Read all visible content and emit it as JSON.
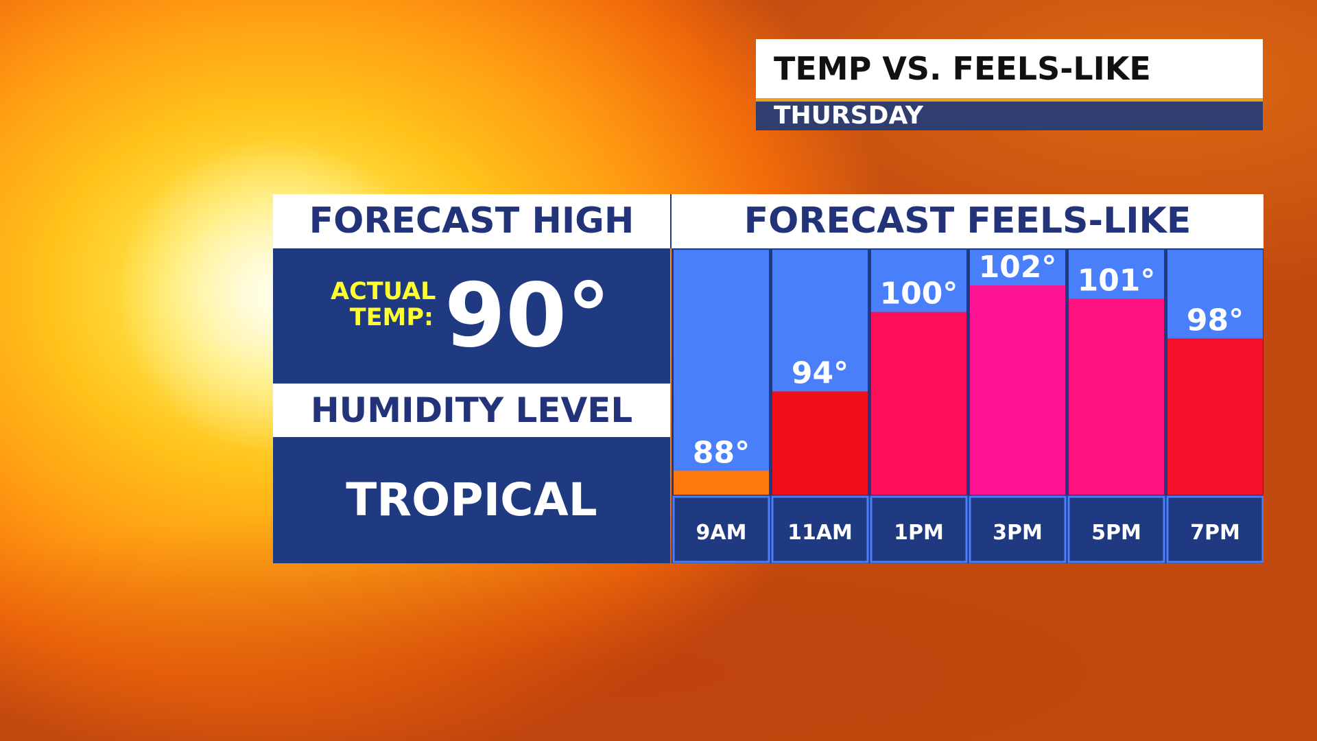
{
  "header": {
    "title": "TEMP VS. FEELS-LIKE",
    "subtitle": "THURSDAY"
  },
  "left_panel": {
    "forecast_high_label": "FORECAST HIGH",
    "actual_label_line1": "ACTUAL",
    "actual_label_line2": "TEMP:",
    "actual_temp": "90°",
    "humidity_label": "HUMIDITY LEVEL",
    "humidity_value": "TROPICAL"
  },
  "chart_data": {
    "type": "bar",
    "title": "FORECAST FEELS-LIKE",
    "categories": [
      "9AM",
      "11AM",
      "1PM",
      "3PM",
      "5PM",
      "7PM"
    ],
    "values": [
      88,
      94,
      100,
      102,
      101,
      98
    ],
    "value_labels": [
      "88°",
      "94°",
      "100°",
      "102°",
      "101°",
      "98°"
    ],
    "bar_colors": [
      "#ff7a0a",
      "#f20f1a",
      "#ff0f5a",
      "#ff1493",
      "#ff1180",
      "#f5102a"
    ],
    "column_background": "#4a7ffc",
    "axis_background": "#203a82"
  }
}
